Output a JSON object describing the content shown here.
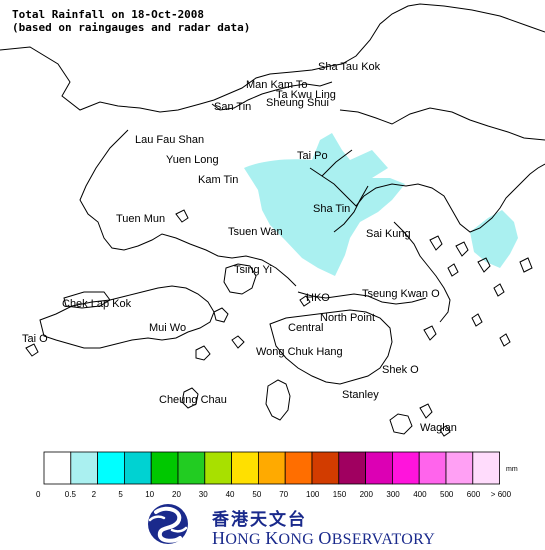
{
  "title": {
    "line1": "Total Rainfall on 18-Oct-2008",
    "line2": "(based on raingauges and radar data)"
  },
  "places": [
    {
      "name": "Sha Tau Kok"
    },
    {
      "name": "Man Kam To"
    },
    {
      "name": "Ta Kwu Ling"
    },
    {
      "name": "San Tin"
    },
    {
      "name": "Sheung Shui"
    },
    {
      "name": "Lau Fau Shan"
    },
    {
      "name": "Yuen Long"
    },
    {
      "name": "Tai Po"
    },
    {
      "name": "Kam Tin"
    },
    {
      "name": "Tuen Mun"
    },
    {
      "name": "Sha Tin"
    },
    {
      "name": "Tsuen Wan"
    },
    {
      "name": "Sai Kung"
    },
    {
      "name": "Tsing Yi"
    },
    {
      "name": "Chek Lap Kok"
    },
    {
      "name": "HKO"
    },
    {
      "name": "Tseung Kwan O"
    },
    {
      "name": "Mui Wo"
    },
    {
      "name": "North Point"
    },
    {
      "name": "Central"
    },
    {
      "name": "Tai O"
    },
    {
      "name": "Wong Chuk Hang"
    },
    {
      "name": "Shek O"
    },
    {
      "name": "Cheung Chau"
    },
    {
      "name": "Stanley"
    },
    {
      "name": "Waglan"
    }
  ],
  "legend": {
    "unit": "mm",
    "colors": [
      "#ffffff",
      "#aaf0f0",
      "#00ffff",
      "#00d2d2",
      "#00c800",
      "#22cc22",
      "#a8e000",
      "#ffe000",
      "#ffaa00",
      "#ff6e00",
      "#d23c00",
      "#a00060",
      "#dc00b4",
      "#ff14dc",
      "#ff64ec",
      "#ffa0f4",
      "#ffdcfc"
    ],
    "labels": [
      "0",
      "0.5",
      "2",
      "5",
      "10",
      "20",
      "30",
      "40",
      "50",
      "70",
      "100",
      "150",
      "200",
      "300",
      "400",
      "500",
      "600",
      "> 600"
    ]
  },
  "rain_color": "#aaf0f0",
  "logo": {
    "zh": "香港天文台",
    "en_h": "H",
    "en_ong": "ONG ",
    "en_k": "K",
    "en_ong2": "ONG ",
    "en_o": "O",
    "en_bservatory": "BSERVATORY"
  }
}
